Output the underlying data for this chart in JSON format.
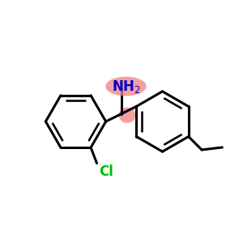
{
  "bg_color": "#ffffff",
  "bond_color": "#000000",
  "bond_lw": 2.2,
  "cl_color": "#00bb00",
  "nh2_color": "#0000cc",
  "highlight_color_nh2": "#f08080",
  "highlight_color_ch": "#f08080",
  "figsize": [
    3.0,
    3.0
  ],
  "dpi": 100,
  "xlim": [
    0,
    10
  ],
  "ylim": [
    0,
    10
  ]
}
